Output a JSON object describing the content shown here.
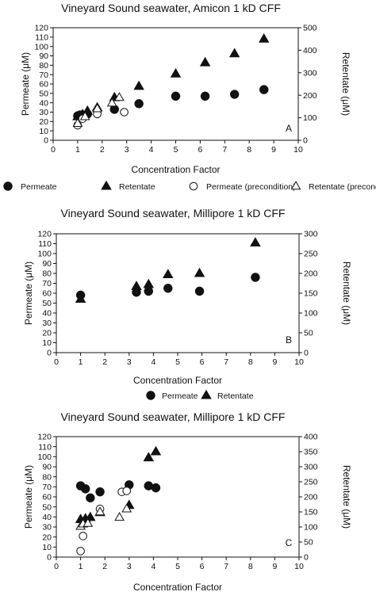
{
  "chart_data": [
    {
      "type": "scatter",
      "title": "Vineyard Sound seawater, Amicon 1 kD CFF",
      "xlabel": "Concentration Factor",
      "ylabel": "Permeate (μM)",
      "y2label": "Retentate (μM)",
      "panel_label": "A",
      "xlim": [
        0,
        10
      ],
      "ylim": [
        0,
        120
      ],
      "y2lim": [
        0,
        500
      ],
      "x_ticks": [
        "0",
        "1",
        "2",
        "3",
        "4",
        "5",
        "6",
        "7",
        "8",
        "9",
        "10"
      ],
      "y_ticks": [
        "0",
        "10",
        "20",
        "30",
        "40",
        "50",
        "60",
        "70",
        "80",
        "90",
        "100",
        "110",
        "120"
      ],
      "y2_ticks": [
        "0",
        "100",
        "200",
        "300",
        "400",
        "500"
      ],
      "series": [
        {
          "name": "Permeate",
          "marker": "circle-filled",
          "axis": "left",
          "x": [
            1.0,
            1.1,
            1.2,
            1.4,
            2.5,
            3.5,
            5.0,
            6.2,
            7.4,
            8.6
          ],
          "y": [
            26,
            27,
            27,
            28,
            33,
            39,
            47,
            47,
            49,
            54
          ]
        },
        {
          "name": "Retentate",
          "marker": "triangle-filled",
          "axis": "right",
          "x": [
            1.0,
            1.2,
            1.4,
            1.8,
            2.5,
            3.5,
            5.0,
            6.2,
            7.4,
            8.6
          ],
          "y": [
            105,
            115,
            130,
            145,
            190,
            240,
            295,
            345,
            385,
            450
          ]
        },
        {
          "name": "Permeate (precondition)",
          "marker": "circle-open",
          "axis": "left",
          "x": [
            1.0,
            1.2,
            1.8,
            2.9
          ],
          "y": [
            16,
            23,
            28,
            30
          ]
        },
        {
          "name": "Retentate (precondition)",
          "marker": "triangle-open",
          "axis": "right",
          "x": [
            1.0,
            1.3,
            1.8,
            2.4,
            2.7
          ],
          "y": [
            75,
            105,
            140,
            165,
            190
          ]
        }
      ]
    },
    {
      "type": "scatter",
      "title": "Vineyard Sound seawater, Millipore 1 kD CFF",
      "xlabel": "Concentration Factor",
      "ylabel": "Permeate (μM)",
      "y2label": "Retentate (μM)",
      "panel_label": "B",
      "xlim": [
        0,
        10
      ],
      "ylim": [
        0,
        120
      ],
      "y2lim": [
        0,
        300
      ],
      "x_ticks": [
        "0",
        "1",
        "2",
        "3",
        "4",
        "5",
        "6",
        "7",
        "8",
        "9",
        "10"
      ],
      "y_ticks": [
        "0",
        "10",
        "20",
        "30",
        "40",
        "50",
        "60",
        "70",
        "80",
        "90",
        "100",
        "110",
        "120"
      ],
      "y2_ticks": [
        "0",
        "50",
        "100",
        "150",
        "200",
        "250",
        "300"
      ],
      "series": [
        {
          "name": "Permeate",
          "marker": "circle-filled",
          "axis": "left",
          "x": [
            1.0,
            3.3,
            3.8,
            4.6,
            5.9,
            8.2
          ],
          "y": [
            58,
            61,
            62,
            65,
            62,
            76
          ]
        },
        {
          "name": "Retentate",
          "marker": "triangle-filled",
          "axis": "right",
          "x": [
            1.0,
            3.3,
            3.8,
            4.6,
            5.9,
            8.2
          ],
          "y": [
            135,
            167,
            172,
            197,
            200,
            277
          ]
        }
      ]
    },
    {
      "type": "scatter",
      "title": "Vineyard Sound seawater, Millipore 1 kD CFF",
      "xlabel": "Concentration Factor",
      "ylabel": "Permeate (μM)",
      "y2label": "Retentate (μM)",
      "panel_label": "C",
      "xlim": [
        0,
        10
      ],
      "ylim": [
        0,
        120
      ],
      "y2lim": [
        0,
        400
      ],
      "x_ticks": [
        "0",
        "1",
        "2",
        "3",
        "4",
        "5",
        "6",
        "7",
        "8",
        "9",
        "10"
      ],
      "y_ticks": [
        "0",
        "10",
        "20",
        "30",
        "40",
        "50",
        "60",
        "70",
        "80",
        "90",
        "100",
        "110",
        "120"
      ],
      "y2_ticks": [
        "0",
        "50",
        "100",
        "150",
        "200",
        "250",
        "300",
        "350",
        "400"
      ],
      "series": [
        {
          "name": "Permeate",
          "marker": "circle-filled",
          "axis": "left",
          "x": [
            1.0,
            1.2,
            1.4,
            1.8,
            3.0,
            3.8,
            4.1
          ],
          "y": [
            71,
            68,
            59,
            65,
            72,
            71,
            69
          ]
        },
        {
          "name": "Retentate",
          "marker": "triangle-filled",
          "axis": "right",
          "x": [
            1.0,
            1.2,
            1.4,
            1.8,
            3.0,
            3.8,
            4.1
          ],
          "y": [
            125,
            128,
            132,
            148,
            172,
            330,
            350
          ]
        },
        {
          "name": "Permeate (precondition)",
          "marker": "circle-open",
          "axis": "left",
          "x": [
            1.0,
            1.1,
            1.8,
            2.7,
            2.9
          ],
          "y": [
            6,
            21,
            48,
            65,
            66
          ]
        },
        {
          "name": "Retentate (precondition)",
          "marker": "triangle-open",
          "axis": "right",
          "x": [
            1.0,
            1.1,
            1.3,
            1.8,
            2.6,
            2.9
          ],
          "y": [
            102,
            110,
            112,
            150,
            132,
            160
          ]
        }
      ]
    }
  ],
  "legends": [
    {
      "items": [
        {
          "label": "Permeate",
          "marker": "circle-filled"
        },
        {
          "label": "Retentate",
          "marker": "triangle-filled"
        },
        {
          "label": "Permeate (precondition)",
          "marker": "circle-open"
        },
        {
          "label": "Retentate (precondition)",
          "marker": "triangle-open"
        }
      ]
    },
    {
      "items": [
        {
          "label": "Permeate",
          "marker": "circle-filled"
        },
        {
          "label": "Retentate",
          "marker": "triangle-filled"
        }
      ]
    }
  ]
}
